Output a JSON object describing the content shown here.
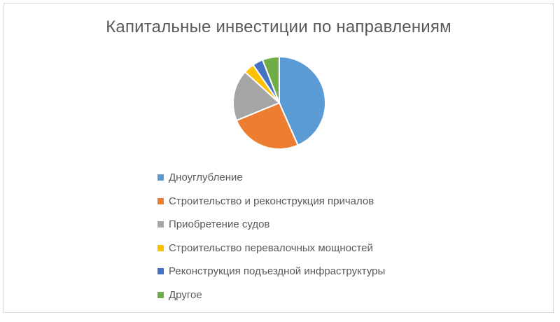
{
  "page": {
    "background_color": "#FFFFFF",
    "border_color": "#D9D9D9"
  },
  "chart_data": {
    "type": "pie",
    "title": "Капитальные инвестиции по направлениям",
    "title_color": "#595959",
    "categories": [
      "Дноуглубление",
      "Строительство и реконструкция причалов",
      "Приобретение судов",
      "Строительство перевалочных мощностей",
      "Реконструкция подъездной инфраструктуры",
      "Другое"
    ],
    "values": [
      43.4,
      25.4,
      17.9,
      3.7,
      3.7,
      5.9
    ],
    "values_estimated_from_angles": true,
    "colors": [
      "#5B9BD5",
      "#ED7D31",
      "#A5A5A5",
      "#FFC000",
      "#4472C4",
      "#70AD47"
    ],
    "start_angle_deg": 0,
    "direction": "clockwise",
    "slice_border_color": "#FFFFFF",
    "legend_position": "below-left-column",
    "legend_text_color": "#595959",
    "data_labels_shown": false
  }
}
